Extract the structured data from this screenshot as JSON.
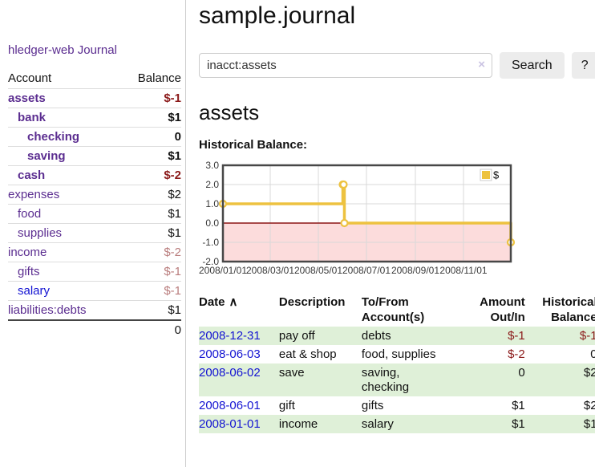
{
  "brand": {
    "label": "hledger-web"
  },
  "sidebar": {
    "journal_link": "Journal",
    "table": {
      "account_header": "Account",
      "balance_header": "Balance",
      "rows": [
        {
          "name": "assets",
          "balance": "$-1",
          "indent": 0,
          "bold": true,
          "neg": "strong",
          "link_color": "purple"
        },
        {
          "name": "bank",
          "balance": "$1",
          "indent": 1,
          "bold": true,
          "neg": "none",
          "link_color": "purple"
        },
        {
          "name": "checking",
          "balance": "0",
          "indent": 2,
          "bold": true,
          "neg": "none",
          "link_color": "purple"
        },
        {
          "name": "saving",
          "balance": "$1",
          "indent": 2,
          "bold": true,
          "neg": "none",
          "link_color": "purple"
        },
        {
          "name": "cash",
          "balance": "$-2",
          "indent": 1,
          "bold": true,
          "neg": "strong",
          "link_color": "purple"
        },
        {
          "name": "expenses",
          "balance": "$2",
          "indent": 0,
          "bold": false,
          "neg": "none",
          "link_color": "purple"
        },
        {
          "name": "food",
          "balance": "$1",
          "indent": 1,
          "bold": false,
          "neg": "none",
          "link_color": "purple"
        },
        {
          "name": "supplies",
          "balance": "$1",
          "indent": 1,
          "bold": false,
          "neg": "none",
          "link_color": "purple"
        },
        {
          "name": "income",
          "balance": "$-2",
          "indent": 0,
          "bold": false,
          "neg": "soft",
          "link_color": "purple"
        },
        {
          "name": "gifts",
          "balance": "$-1",
          "indent": 1,
          "bold": false,
          "neg": "soft",
          "link_color": "purple"
        },
        {
          "name": "salary",
          "balance": "$-1",
          "indent": 1,
          "bold": false,
          "neg": "soft",
          "link_color": "blue"
        },
        {
          "name": "liabilities:debts",
          "balance": "$1",
          "indent": 0,
          "bold": false,
          "neg": "none",
          "link_color": "purple"
        }
      ],
      "total": "0"
    }
  },
  "main": {
    "title": "sample.journal",
    "search": {
      "value": "inacct:assets",
      "clear_icon": "×",
      "search_button": "Search",
      "help_button": "?"
    },
    "account_title": "assets",
    "chart_heading": "Historical Balance:"
  },
  "chart_data": {
    "type": "line",
    "step": true,
    "title": "Historical Balance",
    "legend": {
      "label": "$",
      "position": "top-right"
    },
    "series": [
      {
        "name": "$",
        "color": "#EDC240",
        "points": [
          [
            "2008-01-01",
            1
          ],
          [
            "2008-06-01",
            2
          ],
          [
            "2008-06-02",
            2
          ],
          [
            "2008-06-03",
            0
          ],
          [
            "2008-12-31",
            -1
          ]
        ]
      }
    ],
    "x_ticks": [
      "2008/01/01",
      "2008/03/01",
      "2008/05/01",
      "2008/07/01",
      "2008/09/01",
      "2008/11/01"
    ],
    "y_ticks": [
      3.0,
      2.0,
      1.0,
      0.0,
      -1.0,
      -2.0
    ],
    "xlim": [
      "2008-01-01",
      "2008-12-31"
    ],
    "ylim": [
      -2,
      3
    ],
    "grid": true,
    "zero_line_color": "#8b1515",
    "negative_region_color": "#fcdcdc",
    "grid_color": "#d9d9d9",
    "border_color": "#474747"
  },
  "register": {
    "headers": [
      {
        "label": "Date",
        "sort_icon": "∧"
      },
      {
        "label": "Description"
      },
      {
        "label": "To/From Account(s)"
      },
      {
        "label": "Amount Out/In"
      },
      {
        "label": "Historical Balance"
      }
    ],
    "rows": [
      {
        "date": "2008-12-31",
        "description": "pay off",
        "accounts": "debts",
        "amount": "$-1",
        "amount_negative": true,
        "balance": "$-1",
        "balance_negative": true
      },
      {
        "date": "2008-06-03",
        "description": "eat & shop",
        "accounts": "food, supplies",
        "amount": "$-2",
        "amount_negative": true,
        "balance": "0",
        "balance_negative": false
      },
      {
        "date": "2008-06-02",
        "description": "save",
        "accounts": "saving,\nchecking",
        "amount": "0",
        "amount_negative": false,
        "balance": "$2",
        "balance_negative": false
      },
      {
        "date": "2008-06-01",
        "description": "gift",
        "accounts": "gifts",
        "amount": "$1",
        "amount_negative": false,
        "balance": "$2",
        "balance_negative": false
      },
      {
        "date": "2008-01-01",
        "description": "income",
        "accounts": "salary",
        "amount": "$1",
        "amount_negative": false,
        "balance": "$1",
        "balance_negative": false
      }
    ],
    "stripe_color": "#dff0d8"
  },
  "colors": {
    "link_purple": "#5b2d90",
    "link_blue": "#1414d2",
    "negative_strong": "#8b1a1a",
    "negative_soft": "#b97c7c",
    "series_yellow": "#EDC240"
  }
}
